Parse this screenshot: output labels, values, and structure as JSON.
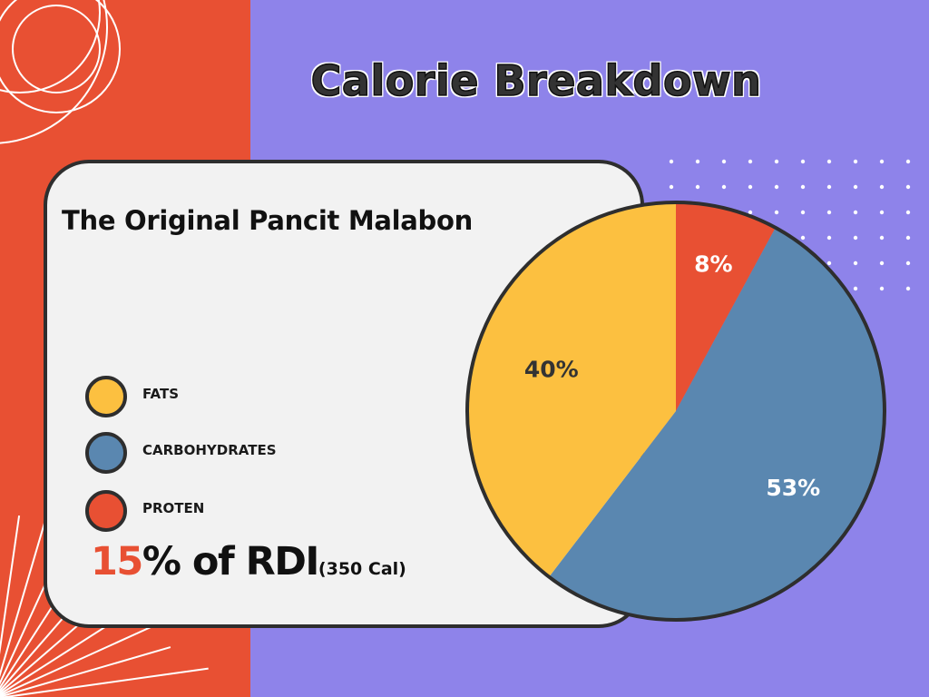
{
  "header": {
    "title": "Calorie Breakdown"
  },
  "card": {
    "subtitle": "The Original Pancit Malabon",
    "rdi": {
      "percent": "15",
      "label": "% of RDI",
      "calories": "(350 Cal)"
    }
  },
  "colors": {
    "fats": "#fcc040",
    "carbohydrates": "#5a87b0",
    "protein": "#e85033",
    "accent": "#e85033",
    "background_left": "#e85033",
    "background_right": "#8e83ea"
  },
  "chart_data": {
    "type": "pie",
    "title": "",
    "slices": [
      {
        "label": "FATS",
        "value": 40,
        "display": "40%",
        "color": "#fcc040",
        "text_color": "#333333"
      },
      {
        "label": "CARBOHYDRATES",
        "value": 53,
        "display": "53%",
        "color": "#5a87b0",
        "text_color": "#ffffff"
      },
      {
        "label": "PROTEN",
        "value": 8,
        "display": "8%",
        "color": "#e85033",
        "text_color": "#ffffff"
      }
    ],
    "legend_position": "left"
  }
}
